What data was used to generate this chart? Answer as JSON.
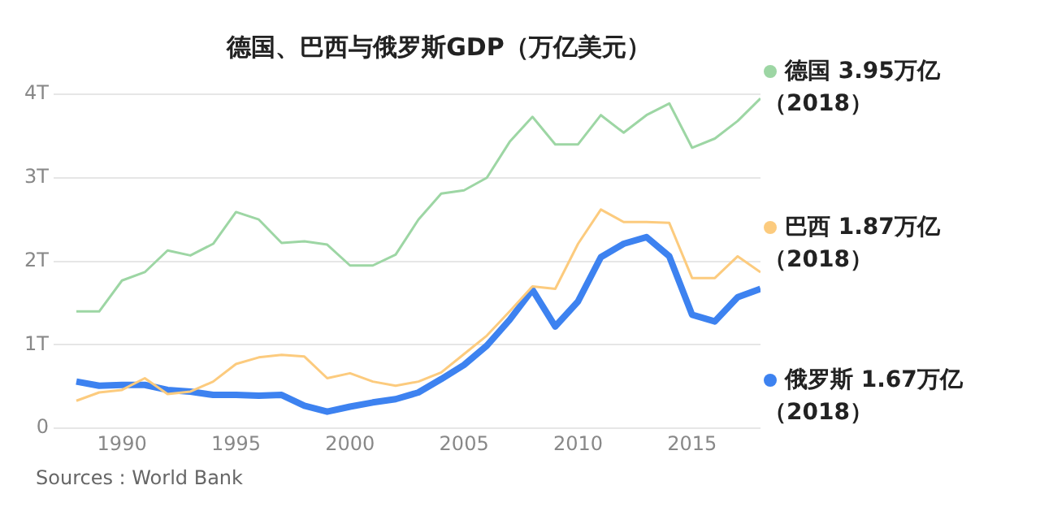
{
  "chart_data": {
    "type": "line",
    "title": "德国、巴西与俄罗斯GDP（万亿美元）",
    "x": [
      1988,
      1989,
      1990,
      1991,
      1992,
      1993,
      1994,
      1995,
      1996,
      1997,
      1998,
      1999,
      2000,
      2001,
      2002,
      2003,
      2004,
      2005,
      2006,
      2007,
      2008,
      2009,
      2010,
      2011,
      2012,
      2013,
      2014,
      2015,
      2016,
      2017,
      2018
    ],
    "series": [
      {
        "name": "德国 3.95万亿（2018）",
        "color": "#9dd6a4",
        "values": [
          1.4,
          1.4,
          1.77,
          1.87,
          2.13,
          2.07,
          2.21,
          2.59,
          2.5,
          2.22,
          2.24,
          2.2,
          1.95,
          1.95,
          2.08,
          2.5,
          2.81,
          2.85,
          3.0,
          3.43,
          3.73,
          3.4,
          3.4,
          3.75,
          3.54,
          3.75,
          3.89,
          3.36,
          3.47,
          3.68,
          3.95
        ]
      },
      {
        "name": "巴西 1.87万亿（2018）",
        "color": "#fccb7e",
        "values": [
          0.33,
          0.43,
          0.46,
          0.6,
          0.41,
          0.44,
          0.56,
          0.77,
          0.85,
          0.88,
          0.86,
          0.6,
          0.66,
          0.56,
          0.51,
          0.56,
          0.67,
          0.89,
          1.11,
          1.4,
          1.7,
          1.67,
          2.21,
          2.62,
          2.47,
          2.47,
          2.46,
          1.8,
          1.8,
          2.06,
          1.87
        ]
      },
      {
        "name": "俄罗斯 1.67万亿（2018）",
        "color": "#3d82f0",
        "values": [
          0.56,
          0.51,
          0.52,
          0.52,
          0.46,
          0.44,
          0.4,
          0.4,
          0.39,
          0.4,
          0.27,
          0.2,
          0.26,
          0.31,
          0.35,
          0.43,
          0.59,
          0.76,
          0.99,
          1.3,
          1.66,
          1.22,
          1.52,
          2.05,
          2.21,
          2.29,
          2.06,
          1.36,
          1.28,
          1.57,
          1.67
        ]
      }
    ],
    "xlim": [
      1987,
      2018
    ],
    "xticks": [
      1990,
      1995,
      2000,
      2005,
      2010,
      2015
    ],
    "ylim": [
      0,
      4
    ],
    "yticks": [
      0,
      {
        "value": 1,
        "label": "1T"
      },
      {
        "value": 2,
        "label": "2T"
      },
      {
        "value": 3,
        "label": "3T"
      },
      {
        "value": 4,
        "label": "4T"
      }
    ],
    "grid": "y",
    "legend": "right",
    "marker": "none",
    "annotations": [
      "Sources : World Bank"
    ]
  }
}
